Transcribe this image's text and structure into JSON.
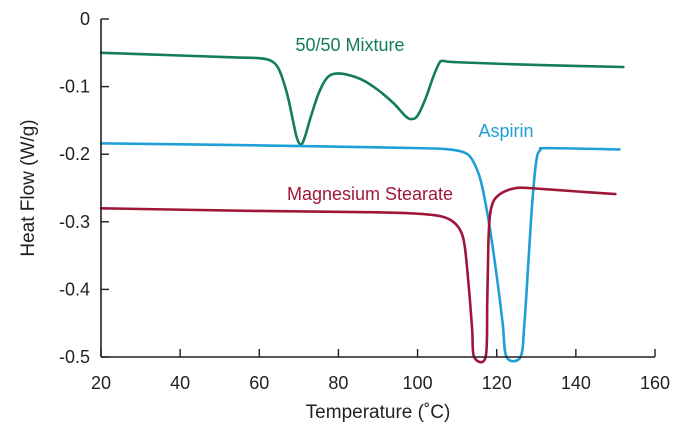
{
  "chart_data": {
    "type": "line",
    "title": "",
    "xlabel": "Temperature (˚C)",
    "ylabel": "Heat Flow (W/g)",
    "xlim": [
      20,
      160
    ],
    "ylim": [
      -0.5,
      0
    ],
    "xticks": [
      20,
      40,
      60,
      80,
      100,
      120,
      140,
      160
    ],
    "yticks": [
      0,
      -0.1,
      -0.2,
      -0.3,
      -0.4,
      -0.5
    ],
    "ytick_labels": [
      "0",
      "-0.1",
      "-0.2",
      "-0.3",
      "-0.4",
      "-0.5"
    ],
    "grid": false,
    "legend": "none",
    "series": [
      {
        "name": "50/50 Mixture",
        "color": "#127c5c",
        "points": [
          [
            20,
            -0.05
          ],
          [
            40,
            -0.054
          ],
          [
            55,
            -0.057
          ],
          [
            60,
            -0.058
          ],
          [
            63,
            -0.062
          ],
          [
            65,
            -0.075
          ],
          [
            67,
            -0.11
          ],
          [
            68.5,
            -0.15
          ],
          [
            69.5,
            -0.176
          ],
          [
            70.5,
            -0.186
          ],
          [
            71.5,
            -0.175
          ],
          [
            73,
            -0.145
          ],
          [
            75,
            -0.11
          ],
          [
            77,
            -0.088
          ],
          [
            79,
            -0.081
          ],
          [
            82,
            -0.082
          ],
          [
            86,
            -0.09
          ],
          [
            90,
            -0.105
          ],
          [
            94,
            -0.125
          ],
          [
            97,
            -0.144
          ],
          [
            98.5,
            -0.148
          ],
          [
            100,
            -0.143
          ],
          [
            102,
            -0.118
          ],
          [
            104,
            -0.085
          ],
          [
            105.5,
            -0.065
          ],
          [
            106.5,
            -0.062
          ],
          [
            110,
            -0.064
          ],
          [
            130,
            -0.068
          ],
          [
            152,
            -0.071
          ]
        ]
      },
      {
        "name": "Aspirin",
        "color": "#1ea0d6",
        "points": [
          [
            20,
            -0.184
          ],
          [
            60,
            -0.187
          ],
          [
            100,
            -0.191
          ],
          [
            108,
            -0.193
          ],
          [
            112,
            -0.198
          ],
          [
            114,
            -0.21
          ],
          [
            116,
            -0.24
          ],
          [
            118,
            -0.3
          ],
          [
            120,
            -0.38
          ],
          [
            121.5,
            -0.45
          ],
          [
            122.5,
            -0.5
          ],
          [
            126,
            -0.5
          ],
          [
            127,
            -0.45
          ],
          [
            128,
            -0.36
          ],
          [
            129,
            -0.27
          ],
          [
            130,
            -0.21
          ],
          [
            131,
            -0.194
          ],
          [
            133,
            -0.191
          ],
          [
            151,
            -0.193
          ]
        ]
      },
      {
        "name": "Magnesium Stearate",
        "color": "#a01638",
        "points": [
          [
            20,
            -0.28
          ],
          [
            60,
            -0.284
          ],
          [
            90,
            -0.286
          ],
          [
            100,
            -0.288
          ],
          [
            106,
            -0.292
          ],
          [
            109,
            -0.3
          ],
          [
            111,
            -0.315
          ],
          [
            112,
            -0.34
          ],
          [
            113,
            -0.4
          ],
          [
            113.8,
            -0.46
          ],
          [
            114.3,
            -0.5
          ],
          [
            117.2,
            -0.5
          ],
          [
            117.6,
            -0.42
          ],
          [
            117.9,
            -0.33
          ],
          [
            118.3,
            -0.29
          ],
          [
            119,
            -0.272
          ],
          [
            120,
            -0.263
          ],
          [
            122,
            -0.255
          ],
          [
            125,
            -0.25
          ],
          [
            128,
            -0.25
          ],
          [
            140,
            -0.255
          ],
          [
            150,
            -0.259
          ]
        ]
      }
    ],
    "annotations": [
      {
        "text": "50/50 Mixture",
        "series": 0
      },
      {
        "text": "Aspirin",
        "series": 1
      },
      {
        "text": "Magnesium Stearate",
        "series": 2
      }
    ]
  }
}
